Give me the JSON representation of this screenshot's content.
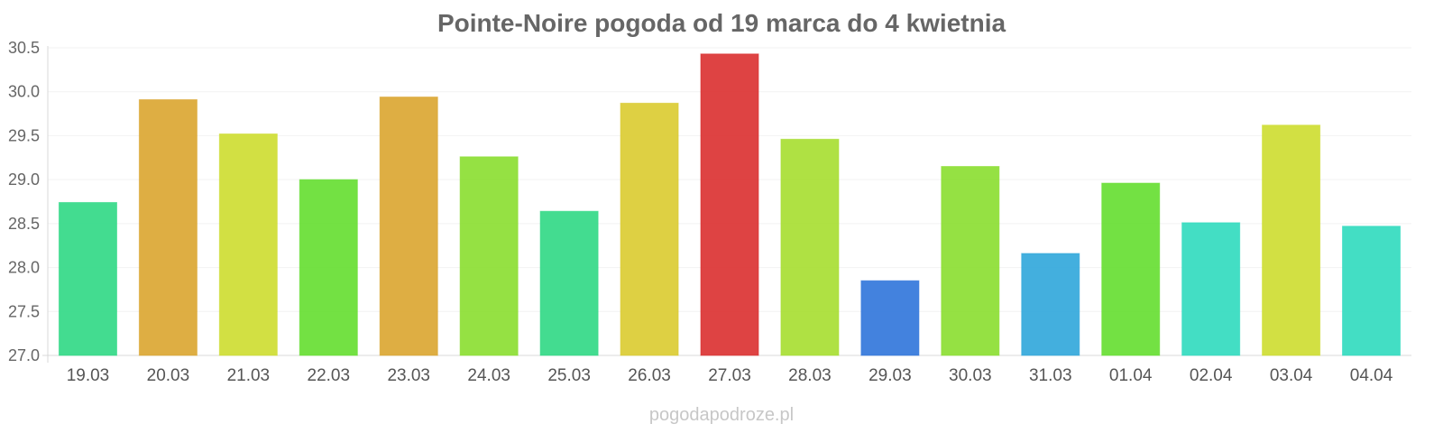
{
  "chart_data": {
    "type": "bar",
    "title": "Pointe-Noire pogoda od 19 marca do 4 kwietnia",
    "xlabel": "",
    "ylabel": "",
    "ylim": [
      27.0,
      30.5
    ],
    "yticks": [
      "27.0",
      "27.5",
      "28.0",
      "28.5",
      "29.0",
      "29.5",
      "30.0",
      "30.5"
    ],
    "grid": true,
    "categories": [
      "19.03",
      "20.03",
      "21.03",
      "22.03",
      "23.03",
      "24.03",
      "25.03",
      "26.03",
      "27.03",
      "28.03",
      "29.03",
      "30.03",
      "31.03",
      "01.04",
      "02.04",
      "03.04",
      "04.04"
    ],
    "values": [
      28.74,
      29.91,
      29.52,
      29.0,
      29.94,
      29.26,
      28.64,
      29.87,
      30.43,
      29.46,
      27.85,
      29.15,
      28.16,
      28.96,
      28.51,
      29.62,
      28.47
    ],
    "colors": [
      "#33d987",
      "#dba733",
      "#cedd33",
      "#67de33",
      "#dba733",
      "#8cde33",
      "#33d987",
      "#dbcc33",
      "#db3333",
      "#a8de33",
      "#3377db",
      "#8cde33",
      "#33a8db",
      "#67de33",
      "#33dbbf",
      "#cedd33",
      "#33dbbf"
    ]
  },
  "watermark": "pogodapodroze.pl"
}
